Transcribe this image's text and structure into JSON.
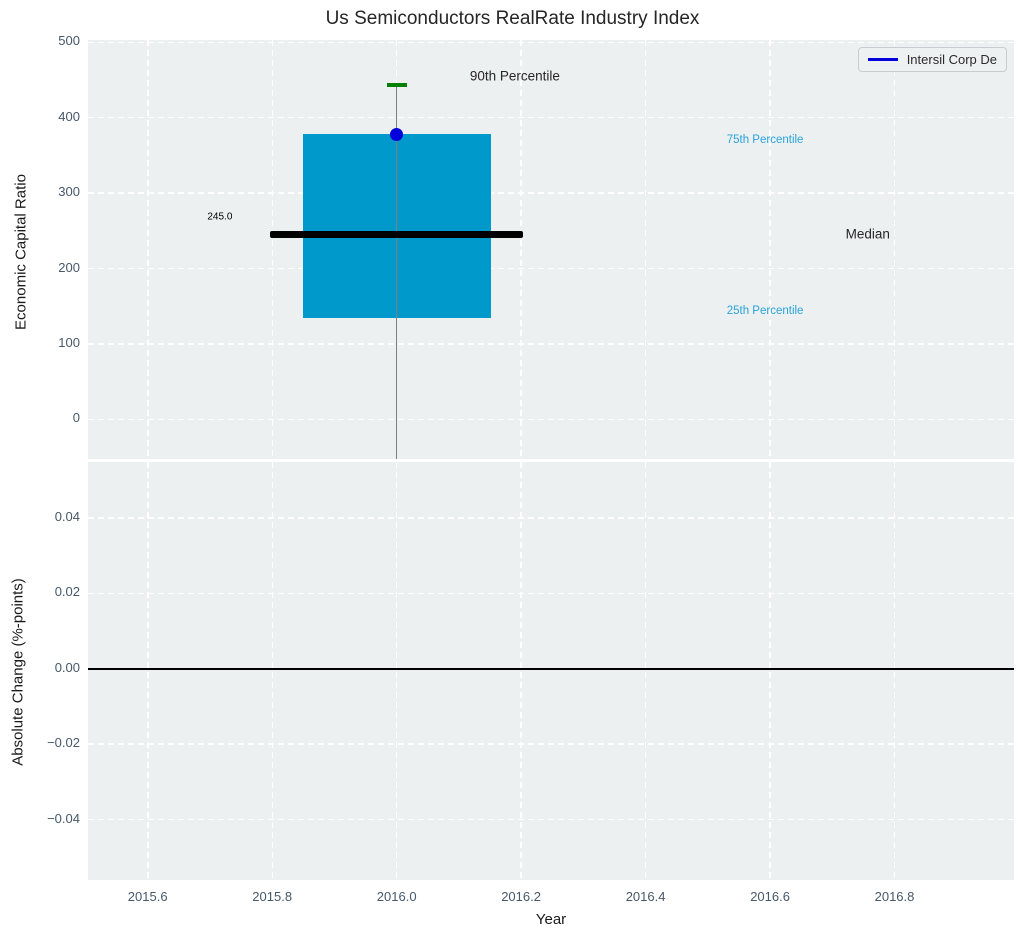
{
  "title": "Us Semiconductors RealRate Industry Index",
  "x_axis": {
    "label": "Year",
    "ticks": [
      {
        "v": 2015.6,
        "label": "2015.6"
      },
      {
        "v": 2015.8,
        "label": "2015.8"
      },
      {
        "v": 2016.0,
        "label": "2016.0"
      },
      {
        "v": 2016.2,
        "label": "2016.2"
      },
      {
        "v": 2016.4,
        "label": "2016.4"
      },
      {
        "v": 2016.6,
        "label": "2016.6"
      },
      {
        "v": 2016.8,
        "label": "2016.8"
      }
    ]
  },
  "legend": {
    "label": "Intersil Corp De",
    "line_color": "#0000dd"
  },
  "colors": {
    "axes_background": "#ecf0f1",
    "grid": "#ffffff",
    "tick_label": "#46586a",
    "text": "#262626",
    "box_fill": "#0099cc",
    "median_line": "#000000",
    "whisker": "#7f7f7f",
    "whisker_cap": "#008000",
    "company_point": "#0000dd",
    "percentile_label": "#29a3db",
    "zero_line": "#000000"
  },
  "chart_data": [
    {
      "type": "box",
      "title": "Us Semiconductors RealRate Industry Index",
      "xlabel": "Year",
      "ylabel": "Economic Capital Ratio",
      "xlim": [
        2015.504,
        2016.992
      ],
      "ylim": [
        -52.5,
        503
      ],
      "grid": true,
      "legend_position": "upper right",
      "yticks": [
        {
          "v": 0,
          "label": "0"
        },
        {
          "v": 100,
          "label": "100"
        },
        {
          "v": 200,
          "label": "200"
        },
        {
          "v": 300,
          "label": "300"
        },
        {
          "v": 400,
          "label": "400"
        },
        {
          "v": 500,
          "label": "500"
        }
      ],
      "boxes": [
        {
          "x": 2016.0,
          "box_half_width": 0.151,
          "median_half_width": 0.203,
          "p90": 444,
          "p75": 378,
          "median": 245.0,
          "p25": 135,
          "whisker_low": -52.5,
          "whisker_low_clipped": true
        }
      ],
      "series": [
        {
          "name": "Intersil Corp De",
          "type": "point",
          "x": 2016.0,
          "y": 378
        }
      ],
      "annotations": [
        {
          "text": "245.0",
          "x": 2015.716,
          "y": 268,
          "color": "#000000",
          "size": 10
        },
        {
          "text": "90th Percentile",
          "x": 2016.19,
          "y": 455,
          "color": "#262626",
          "size": 13.5
        },
        {
          "text": "75th Percentile",
          "x": 2016.592,
          "y": 370,
          "color": "#29a3db",
          "size": 11.5
        },
        {
          "text": "Median",
          "x": 2016.757,
          "y": 246,
          "color": "#262626",
          "size": 13.5
        },
        {
          "text": "25th Percentile",
          "x": 2016.592,
          "y": 144,
          "color": "#29a3db",
          "size": 11.5
        }
      ]
    },
    {
      "type": "line",
      "xlabel": "Year",
      "ylabel": "Absolute Change (%-points)",
      "xlim": [
        2015.504,
        2016.992
      ],
      "ylim": [
        -0.056,
        0.0548
      ],
      "grid": true,
      "yticks": [
        {
          "v": 0.04,
          "label": "0.04"
        },
        {
          "v": 0.02,
          "label": "0.02"
        },
        {
          "v": 0.0,
          "label": "0.00"
        },
        {
          "v": -0.02,
          "label": "−0.02"
        },
        {
          "v": -0.04,
          "label": "−0.04"
        }
      ],
      "zero_line": 0.0,
      "series": []
    }
  ]
}
